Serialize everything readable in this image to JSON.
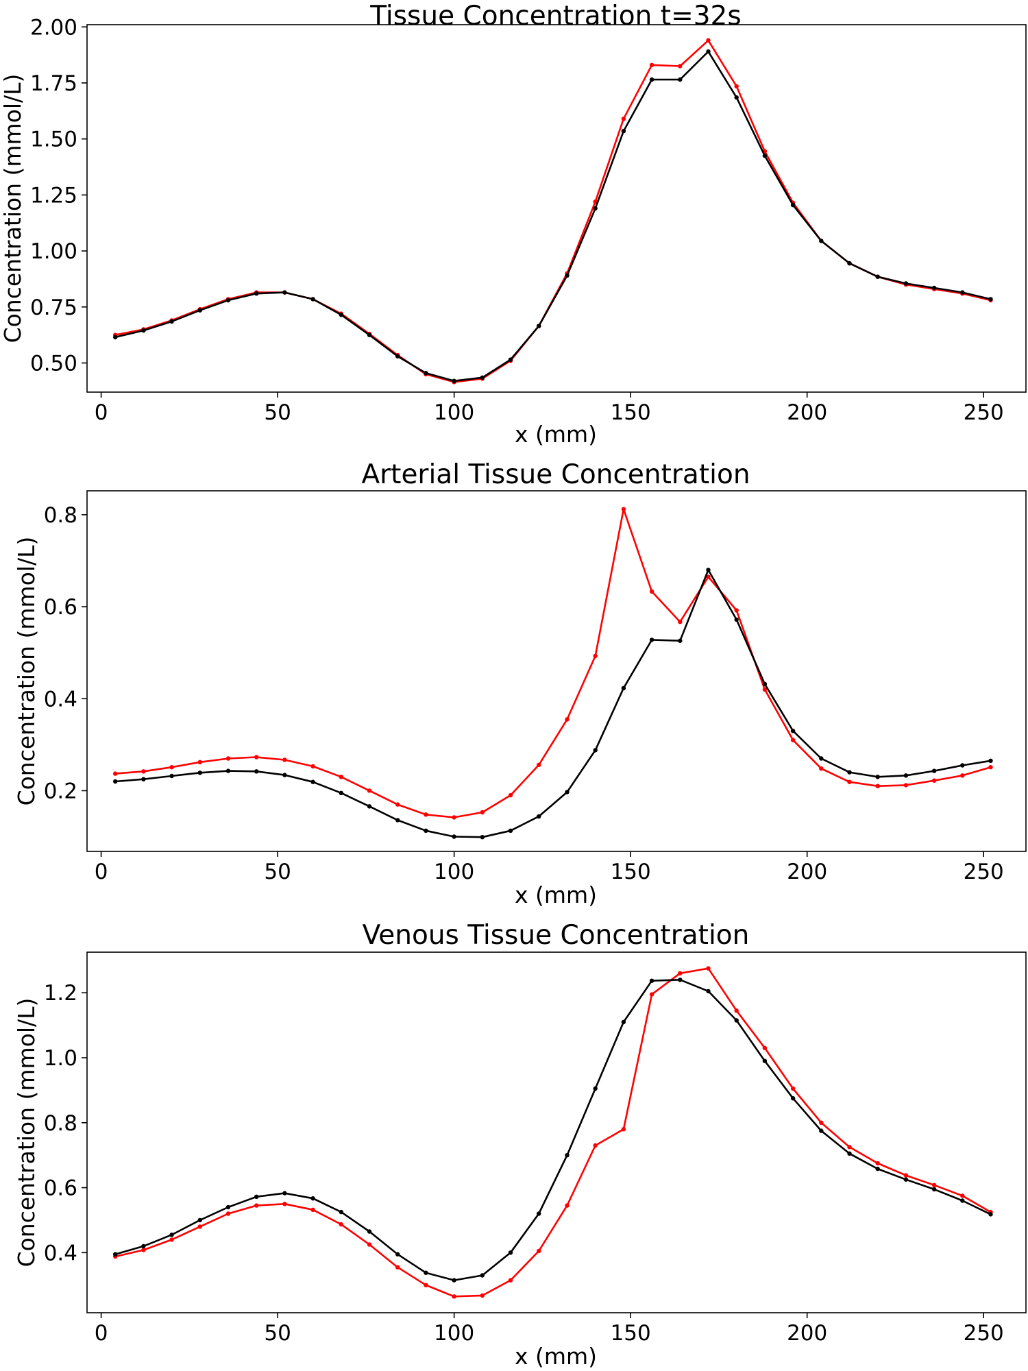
{
  "colors": {
    "red": "#ff0000",
    "black": "#000000"
  },
  "chart_data": [
    {
      "type": "line",
      "title": "Tissue Concentration t=32s",
      "xlabel": "x (mm)",
      "ylabel": "Concentration (mmol/L)",
      "xlim": [
        -4,
        262
      ],
      "ylim": [
        0.37,
        2.01
      ],
      "xticks": [
        0,
        50,
        100,
        150,
        200,
        250
      ],
      "xtick_labels": [
        "0",
        "50",
        "100",
        "150",
        "200",
        "250"
      ],
      "yticks": [
        0.5,
        0.75,
        1.0,
        1.25,
        1.5,
        1.75,
        2.0
      ],
      "ytick_labels": [
        "0.50",
        "0.75",
        "1.00",
        "1.25",
        "1.50",
        "1.75",
        "2.00"
      ],
      "grid": false,
      "x": [
        4,
        12,
        20,
        28,
        36,
        44,
        52,
        60,
        68,
        76,
        84,
        92,
        100,
        108,
        116,
        124,
        132,
        140,
        148,
        156,
        164,
        172,
        180,
        188,
        196,
        204,
        212,
        220,
        228,
        236,
        244,
        252
      ],
      "series": [
        {
          "color": "#ff0000",
          "values": [
            0.625,
            0.65,
            0.69,
            0.74,
            0.785,
            0.815,
            0.815,
            0.785,
            0.72,
            0.63,
            0.535,
            0.45,
            0.415,
            0.43,
            0.51,
            0.665,
            0.9,
            1.22,
            1.59,
            1.83,
            1.825,
            1.94,
            1.735,
            1.445,
            1.215,
            1.045,
            0.945,
            0.885,
            0.85,
            0.83,
            0.81,
            0.78
          ]
        },
        {
          "color": "#000000",
          "values": [
            0.615,
            0.645,
            0.685,
            0.735,
            0.78,
            0.81,
            0.815,
            0.785,
            0.715,
            0.625,
            0.53,
            0.455,
            0.42,
            0.435,
            0.515,
            0.665,
            0.89,
            1.19,
            1.535,
            1.765,
            1.765,
            1.89,
            1.685,
            1.425,
            1.205,
            1.045,
            0.945,
            0.885,
            0.855,
            0.835,
            0.815,
            0.785
          ]
        }
      ]
    },
    {
      "type": "line",
      "title": "Arterial Tissue Concentration",
      "xlabel": "x (mm)",
      "ylabel": "Concentration (mmol/L)",
      "xlim": [
        -4,
        262
      ],
      "ylim": [
        0.068,
        0.852
      ],
      "xticks": [
        0,
        50,
        100,
        150,
        200,
        250
      ],
      "xtick_labels": [
        "0",
        "50",
        "100",
        "150",
        "200",
        "250"
      ],
      "yticks": [
        0.2,
        0.4,
        0.6,
        0.8
      ],
      "ytick_labels": [
        "0.2",
        "0.4",
        "0.6",
        "0.8"
      ],
      "grid": false,
      "x": [
        4,
        12,
        20,
        28,
        36,
        44,
        52,
        60,
        68,
        76,
        84,
        92,
        100,
        108,
        116,
        124,
        132,
        140,
        148,
        156,
        164,
        172,
        180,
        188,
        196,
        204,
        212,
        220,
        228,
        236,
        244,
        252
      ],
      "series": [
        {
          "color": "#ff0000",
          "values": [
            0.237,
            0.242,
            0.251,
            0.262,
            0.27,
            0.273,
            0.267,
            0.253,
            0.23,
            0.2,
            0.17,
            0.148,
            0.142,
            0.153,
            0.19,
            0.256,
            0.355,
            0.493,
            0.812,
            0.633,
            0.567,
            0.665,
            0.592,
            0.42,
            0.31,
            0.248,
            0.219,
            0.21,
            0.212,
            0.222,
            0.233,
            0.251
          ]
        },
        {
          "color": "#000000",
          "values": [
            0.22,
            0.225,
            0.232,
            0.239,
            0.243,
            0.242,
            0.234,
            0.219,
            0.195,
            0.166,
            0.136,
            0.113,
            0.1,
            0.099,
            0.113,
            0.144,
            0.197,
            0.288,
            0.423,
            0.528,
            0.526,
            0.68,
            0.572,
            0.432,
            0.33,
            0.27,
            0.24,
            0.23,
            0.233,
            0.243,
            0.255,
            0.265
          ]
        }
      ]
    },
    {
      "type": "line",
      "title": "Venous Tissue Concentration",
      "xlabel": "x (mm)",
      "ylabel": "Concentration (mmol/L)",
      "xlim": [
        -4,
        262
      ],
      "ylim": [
        0.215,
        1.325
      ],
      "xticks": [
        0,
        50,
        100,
        150,
        200,
        250
      ],
      "xtick_labels": [
        "0",
        "50",
        "100",
        "150",
        "200",
        "250"
      ],
      "yticks": [
        0.4,
        0.6,
        0.8,
        1.0,
        1.2
      ],
      "ytick_labels": [
        "0.4",
        "0.6",
        "0.8",
        "1.0",
        "1.2"
      ],
      "grid": false,
      "x": [
        4,
        12,
        20,
        28,
        36,
        44,
        52,
        60,
        68,
        76,
        84,
        92,
        100,
        108,
        116,
        124,
        132,
        140,
        148,
        156,
        164,
        172,
        180,
        188,
        196,
        204,
        212,
        220,
        228,
        236,
        244,
        252
      ],
      "series": [
        {
          "color": "#ff0000",
          "values": [
            0.388,
            0.408,
            0.44,
            0.48,
            0.52,
            0.545,
            0.55,
            0.532,
            0.487,
            0.425,
            0.355,
            0.3,
            0.265,
            0.268,
            0.315,
            0.405,
            0.545,
            0.73,
            0.78,
            1.195,
            1.26,
            1.275,
            1.145,
            1.03,
            0.905,
            0.8,
            0.725,
            0.675,
            0.638,
            0.608,
            0.575,
            0.525
          ]
        },
        {
          "color": "#000000",
          "values": [
            0.395,
            0.42,
            0.455,
            0.5,
            0.54,
            0.572,
            0.583,
            0.567,
            0.525,
            0.465,
            0.395,
            0.338,
            0.315,
            0.33,
            0.4,
            0.52,
            0.7,
            0.905,
            1.11,
            1.237,
            1.24,
            1.205,
            1.115,
            0.99,
            0.875,
            0.775,
            0.705,
            0.658,
            0.625,
            0.595,
            0.56,
            0.518
          ]
        }
      ]
    }
  ]
}
